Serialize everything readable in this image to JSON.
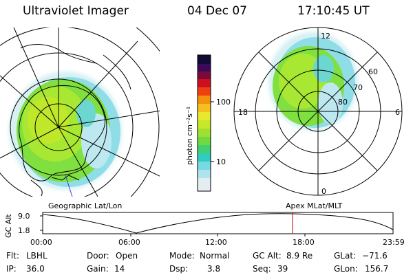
{
  "header": {
    "instrument": "Ultraviolet Imager",
    "date": "04 Dec 07",
    "time": "17:10:45 UT"
  },
  "colorbar": {
    "unit_label": "photon cm⁻²s⁻¹",
    "ticks": [
      "100",
      "10"
    ]
  },
  "polar_plot": {
    "mlt_labels": {
      "top": "12",
      "left": "18",
      "right": "6",
      "bottom": "0"
    },
    "lat_labels": [
      "60",
      "70",
      "80"
    ]
  },
  "map_labels": {
    "left": "Geographic Lat/Lon",
    "right": "Apex MLat/MLT"
  },
  "altitude_strip": {
    "axis_label": "GC Alt",
    "y_ticks": [
      "9.0",
      "1.8"
    ],
    "x_ticks": [
      "00:00",
      "06:00",
      "12:00",
      "18:00",
      "23:59"
    ],
    "marker_color": "#cc0000"
  },
  "footer": {
    "row1": [
      {
        "key": "Flt:",
        "value": "LBHL"
      },
      {
        "key": "Door:",
        "value": "Open"
      },
      {
        "key": "Mode:",
        "value": "Normal"
      },
      {
        "key": "GC Alt:",
        "value": "8.9 Re"
      },
      {
        "key": "GLat:",
        "value": "−71.6"
      }
    ],
    "row2": [
      {
        "key": "IP:",
        "value": "36.0"
      },
      {
        "key": "Gain:",
        "value": "14"
      },
      {
        "key": "Dsp:",
        "value": "3.8"
      },
      {
        "key": "Seq:",
        "value": "39"
      },
      {
        "key": "GLon:",
        "value": "156.7"
      }
    ]
  }
}
